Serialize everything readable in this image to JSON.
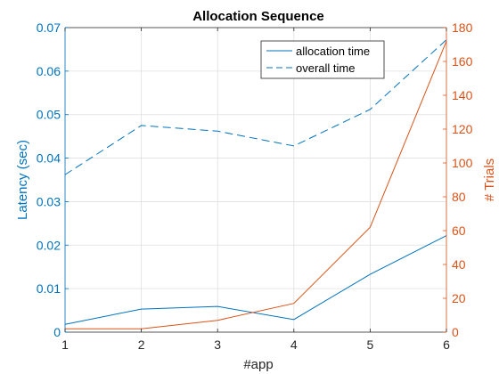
{
  "chart_data": {
    "type": "line",
    "title": "Allocation Sequence",
    "xlabel": "#app",
    "ylabel_left": "Latency (sec)",
    "ylabel_right": "# Trials",
    "x": [
      1,
      2,
      3,
      4,
      5,
      6
    ],
    "xlim": [
      1,
      6
    ],
    "xticks": [
      "1",
      "2",
      "3",
      "4",
      "5",
      "6"
    ],
    "ylim_left": [
      0,
      0.07
    ],
    "yticks_left": [
      "0",
      "0.01",
      "0.02",
      "0.03",
      "0.04",
      "0.05",
      "0.06",
      "0.07"
    ],
    "ylim_right": [
      0,
      180
    ],
    "yticks_right": [
      "0",
      "20",
      "40",
      "60",
      "80",
      "100",
      "120",
      "140",
      "160",
      "180"
    ],
    "grid": true,
    "legend_position": "top-right",
    "series": [
      {
        "name": "allocation time",
        "axis": "left",
        "style": "solid",
        "values": [
          0.0018,
          0.0053,
          0.0059,
          0.0029,
          0.0133,
          0.0222
        ]
      },
      {
        "name": "overall time",
        "axis": "left",
        "style": "dashed",
        "values": [
          0.0362,
          0.0475,
          0.0462,
          0.0428,
          0.0512,
          0.0672
        ]
      },
      {
        "name": "",
        "axis": "right",
        "style": "solid",
        "values": [
          2,
          2,
          7,
          17,
          62,
          172
        ]
      }
    ],
    "colors": {
      "left_axis": "#0072bd",
      "right_axis": "#d95319",
      "text": "#000000",
      "grid": "#dfdfdf",
      "box": "#262626"
    }
  }
}
